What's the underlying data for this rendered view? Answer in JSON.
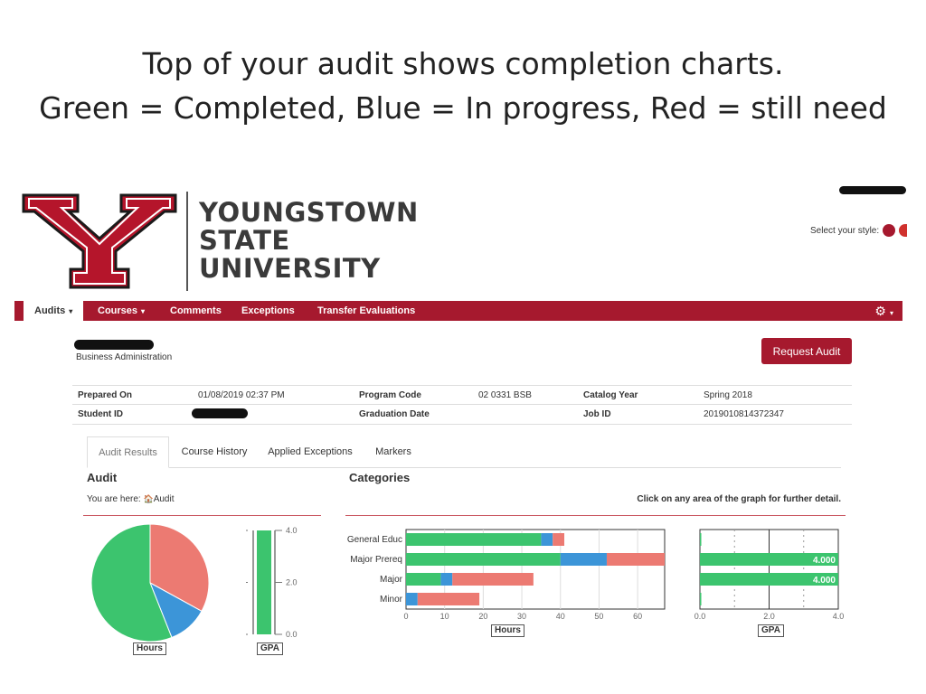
{
  "slide": {
    "title_line1": "Top of your audit shows completion charts.",
    "title_line2": "Green = Completed, Blue = In progress, Red = still need"
  },
  "logo": {
    "line1": "YOUNGSTOWN",
    "line2": "STATE",
    "line3": "UNIVERSITY",
    "letter": "Y"
  },
  "style_selector": {
    "label": "Select your style:",
    "colors": [
      "#a6192e",
      "#d0312d"
    ]
  },
  "nav": {
    "items": [
      {
        "label": "Audits",
        "caret": "▾"
      },
      {
        "label": "Courses",
        "caret": "▾"
      },
      {
        "label": "Comments"
      },
      {
        "label": "Exceptions"
      },
      {
        "label": "Transfer Evaluations"
      }
    ],
    "settings_icon": "gear-icon",
    "settings_glyph": "⚙",
    "settings_caret": "▾"
  },
  "program": {
    "name": "Business Administration"
  },
  "request_audit": {
    "label": "Request Audit"
  },
  "info": {
    "prepared_on_label": "Prepared On",
    "prepared_on": "01/08/2019 02:37 PM",
    "program_code_label": "Program Code",
    "program_code": "02 0331 BSB",
    "catalog_year_label": "Catalog Year",
    "catalog_year": "Spring 2018",
    "student_id_label": "Student ID",
    "graduation_date_label": "Graduation Date",
    "job_id_label": "Job ID",
    "job_id": "2019010814372347"
  },
  "tabs": [
    {
      "label": "Audit Results"
    },
    {
      "label": "Course History"
    },
    {
      "label": "Applied Exceptions"
    },
    {
      "label": "Markers"
    }
  ],
  "audit": {
    "title": "Audit",
    "breadcrumb_prefix": "You are here:",
    "home_icon": "home-icon",
    "home_glyph": "🏠",
    "breadcrumb_current": "Audit"
  },
  "categories": {
    "title": "Categories",
    "hint": "Click on any area of the graph for further detail."
  },
  "colors": {
    "completed": "#3cc46e",
    "in_progress": "#3c95d8",
    "needed": "#ec7a72",
    "brand": "#a6192e"
  },
  "chart_data": [
    {
      "type": "pie",
      "xlabel": "Hours",
      "slices": [
        {
          "status": "completed",
          "value": 56
        },
        {
          "status": "in_progress",
          "value": 11
        },
        {
          "status": "needed",
          "value": 33
        }
      ]
    },
    {
      "type": "bar",
      "orientation": "vertical",
      "xlabel": "GPA",
      "ylim": [
        0,
        4
      ],
      "ticks": [
        "0.0",
        "2.0",
        "4.0"
      ],
      "value": 4.0
    },
    {
      "type": "bar",
      "orientation": "horizontal",
      "stacked": true,
      "xlabel": "Hours",
      "categories": [
        "General Educ",
        "Major Prereq",
        "Major",
        "Minor"
      ],
      "series": [
        {
          "status": "completed",
          "values": [
            35,
            40,
            9,
            0
          ]
        },
        {
          "status": "in_progress",
          "values": [
            3,
            12,
            3,
            3
          ]
        },
        {
          "status": "needed",
          "values": [
            3,
            15,
            21,
            16
          ]
        }
      ],
      "xlim": [
        0,
        67
      ],
      "ticks": [
        0,
        10,
        20,
        30,
        40,
        50,
        60
      ]
    },
    {
      "type": "bar",
      "orientation": "horizontal",
      "xlabel": "GPA",
      "categories": [
        "General Educ",
        "Major Prereq",
        "Major",
        "Minor"
      ],
      "values": [
        0.0,
        4.0,
        4.0,
        0.0
      ],
      "data_labels": [
        "",
        "4.000",
        "4.000",
        ""
      ],
      "xlim": [
        0,
        4
      ],
      "ticks": [
        "0.0",
        "2.0",
        "4.0"
      ]
    }
  ]
}
